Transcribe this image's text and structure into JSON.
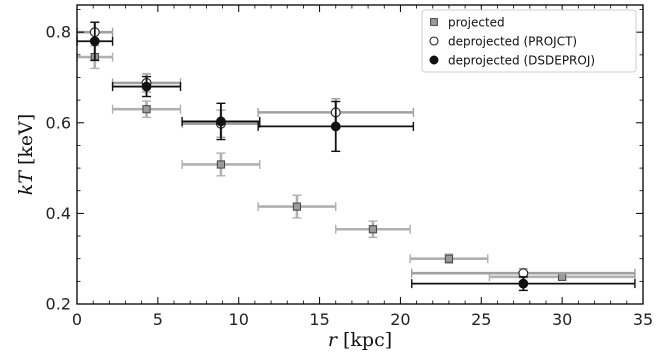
{
  "chart_data": {
    "type": "scatter",
    "xlabel_var": "r",
    "xlabel_unit": "[kpc]",
    "ylabel_var": "kT",
    "ylabel_unit": "[keV]",
    "xlim": [
      0,
      35
    ],
    "ylim": [
      0.2,
      0.86
    ],
    "xticks": [
      0,
      5,
      10,
      15,
      20,
      25,
      30,
      35
    ],
    "yticks": [
      0.2,
      0.4,
      0.6,
      0.8
    ],
    "grid": false,
    "legend_position": "top-right",
    "series": [
      {
        "name": "projected",
        "marker": "square",
        "color": "#a9a9a9",
        "points": [
          {
            "x": 1.1,
            "xerr": [
              1.1,
              1.1
            ],
            "y": 0.745,
            "yerr": [
              0.025,
              0.025
            ]
          },
          {
            "x": 4.3,
            "xerr": [
              2.1,
              2.1
            ],
            "y": 0.63,
            "yerr": [
              0.018,
              0.018
            ]
          },
          {
            "x": 8.9,
            "xerr": [
              2.4,
              2.4
            ],
            "y": 0.508,
            "yerr": [
              0.025,
              0.025
            ]
          },
          {
            "x": 13.6,
            "xerr": [
              2.4,
              2.4
            ],
            "y": 0.415,
            "yerr": [
              0.025,
              0.025
            ]
          },
          {
            "x": 18.3,
            "xerr": [
              2.3,
              2.3
            ],
            "y": 0.365,
            "yerr": [
              0.018,
              0.018
            ]
          },
          {
            "x": 23.0,
            "xerr": [
              2.4,
              2.4
            ],
            "y": 0.3,
            "yerr": [
              0.01,
              0.01
            ]
          },
          {
            "x": 30.0,
            "xerr": [
              4.5,
              4.5
            ],
            "y": 0.26,
            "yerr": [
              0.007,
              0.007
            ]
          }
        ]
      },
      {
        "name": "deprojected (PROJCT)",
        "marker": "open-circle",
        "color": "#9a9a9a",
        "points": [
          {
            "x": 1.1,
            "xerr": [
              1.1,
              1.1
            ],
            "y": 0.8,
            "yerr": [
              0.022,
              0.022
            ]
          },
          {
            "x": 4.3,
            "xerr": [
              2.1,
              2.1
            ],
            "y": 0.688,
            "yerr": [
              0.02,
              0.02
            ]
          },
          {
            "x": 8.9,
            "xerr": [
              2.4,
              2.4
            ],
            "y": 0.598,
            "yerr": [
              0.03,
              0.03
            ]
          },
          {
            "x": 16.0,
            "xerr": [
              4.8,
              4.8
            ],
            "y": 0.623,
            "yerr": [
              0.03,
              0.03
            ]
          },
          {
            "x": 27.6,
            "xerr": [
              6.9,
              6.9
            ],
            "y": 0.268,
            "yerr": [
              0.01,
              0.01
            ]
          }
        ]
      },
      {
        "name": "deprojected (DSDEPROJ)",
        "marker": "filled-circle",
        "color": "#111111",
        "points": [
          {
            "x": 1.1,
            "xerr": [
              1.1,
              1.1
            ],
            "y": 0.78,
            "yerr": [
              0.042,
              0.042
            ]
          },
          {
            "x": 4.3,
            "xerr": [
              2.1,
              2.1
            ],
            "y": 0.68,
            "yerr": [
              0.022,
              0.022
            ]
          },
          {
            "x": 8.9,
            "xerr": [
              2.4,
              2.4
            ],
            "y": 0.603,
            "yerr": [
              0.04,
              0.04
            ]
          },
          {
            "x": 16.0,
            "xerr": [
              4.8,
              4.8
            ],
            "y": 0.592,
            "yerr": [
              0.055,
              0.055
            ]
          },
          {
            "x": 27.6,
            "xerr": [
              6.9,
              6.9
            ],
            "y": 0.245,
            "yerr": [
              0.015,
              0.015
            ]
          }
        ]
      }
    ]
  }
}
